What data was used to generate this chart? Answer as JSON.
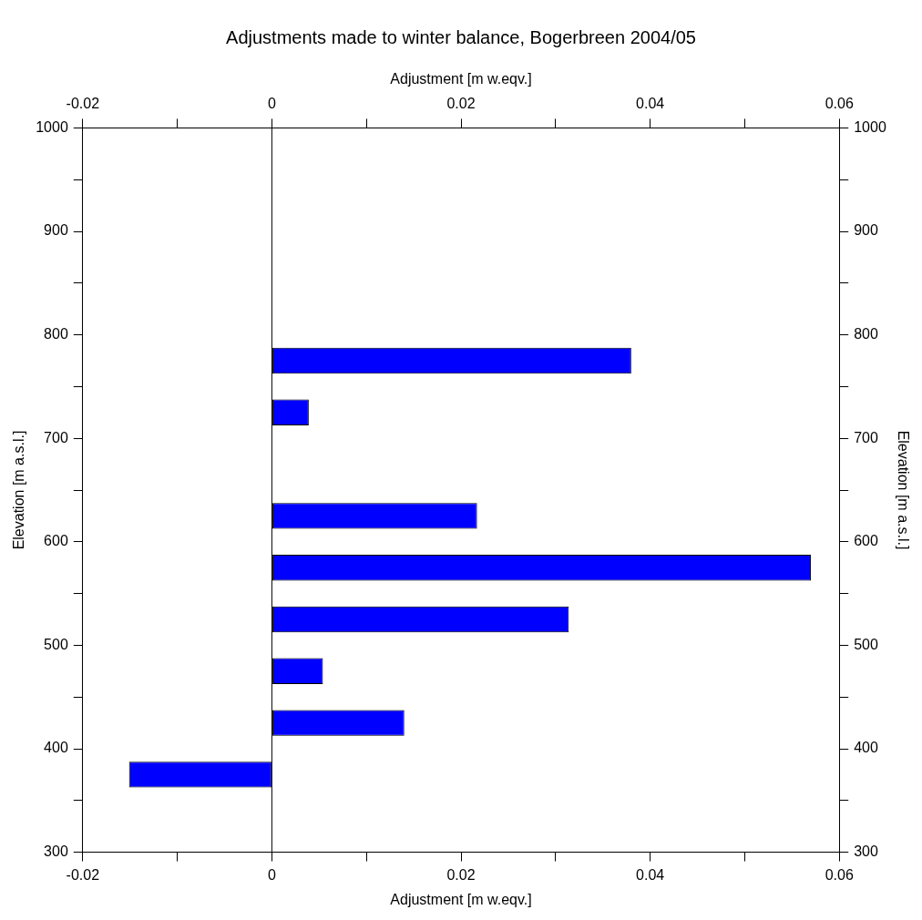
{
  "chart_data": {
    "type": "bar",
    "orientation": "horizontal",
    "title": "Adjustments made to winter balance, Bogerbreen 2004/05",
    "xlabel": "Adjustment [m w.eqv.]",
    "x2label": "Adjustment [m w.eqv.]",
    "ylabel": "Elevation [m a.s.l.]",
    "y2label": "Elevation [m a.s.l.]",
    "x": [
      325,
      375,
      425,
      475,
      525,
      575,
      625,
      675,
      725,
      775,
      825,
      875,
      925
    ],
    "values": [
      0,
      -0.0151,
      0.014,
      0.0054,
      0.0314,
      0.057,
      0.0217,
      0,
      0.0039,
      0.038,
      0,
      0,
      0
    ],
    "color": "#0000ff",
    "xlim": [
      -0.02,
      0.06
    ],
    "xticks": [
      -0.02,
      {
        "value": -0.01,
        "label": null
      },
      0,
      {
        "value": 0.01,
        "label": null
      },
      0.02,
      {
        "value": 0.03,
        "label": null
      },
      0.04,
      {
        "value": 0.05,
        "label": null
      },
      0.06
    ],
    "x2lim": [
      -0.02,
      0.06
    ],
    "x2ticks": [
      -0.02,
      {
        "value": -0.01,
        "label": null
      },
      0,
      {
        "value": 0.01,
        "label": null
      },
      0.02,
      {
        "value": 0.03,
        "label": null
      },
      0.04,
      {
        "value": 0.05,
        "label": null
      },
      0.06
    ],
    "ylim": [
      300,
      1000
    ],
    "yticks": [
      300,
      {
        "value": 350,
        "label": null
      },
      400,
      {
        "value": 450,
        "label": null
      },
      500,
      {
        "value": 550,
        "label": null
      },
      600,
      {
        "value": 650,
        "label": null
      },
      700,
      {
        "value": 750,
        "label": null
      },
      800,
      {
        "value": 850,
        "label": null
      },
      900,
      {
        "value": 950,
        "label": null
      },
      1000
    ],
    "y2lim": [
      300,
      1000
    ],
    "y2ticks": [
      300,
      {
        "value": 350,
        "label": null
      },
      400,
      {
        "value": 450,
        "label": null
      },
      500,
      {
        "value": 550,
        "label": null
      },
      600,
      {
        "value": 650,
        "label": null
      },
      700,
      {
        "value": 750,
        "label": null
      },
      800,
      {
        "value": 850,
        "label": null
      },
      900,
      {
        "value": 950,
        "label": null
      },
      1000
    ],
    "ref_lines": [
      {
        "axis": "x",
        "value": 0,
        "color": "#000000"
      }
    ],
    "grid": false,
    "legend": false
  }
}
